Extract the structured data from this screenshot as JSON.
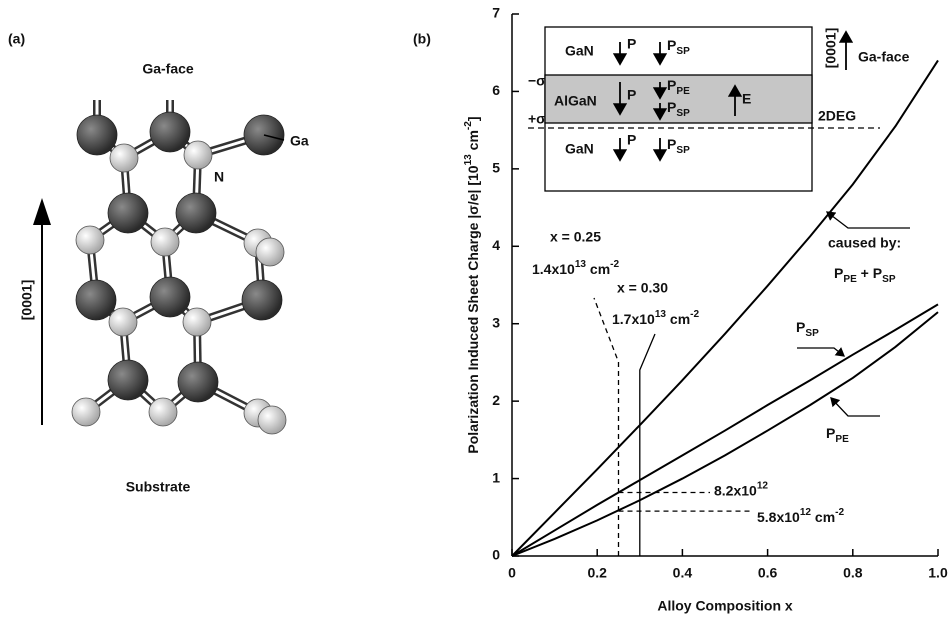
{
  "panel_a": {
    "label": "(a)",
    "top": "Ga-face",
    "ga": "Ga",
    "n": "N",
    "direction": "[0001]",
    "bottom": "Substrate"
  },
  "chart_data": {
    "type": "line",
    "panel_label": "(b)",
    "x_label": "Alloy Composition  x",
    "y_label": {
      "text": "Polarization Induced Sheet Charge |σ/e| [10",
      "exp": "13",
      "unit": " cm",
      "unit_exp": "-2",
      "close": "]"
    },
    "x": [
      0,
      0.1,
      0.2,
      0.3,
      0.4,
      0.5,
      0.6,
      0.7,
      0.8,
      0.9,
      1
    ],
    "series": [
      {
        "name": "caused by:",
        "formula": {
          "a": "P",
          "a_sub": "PE",
          "plus": " + P",
          "b_sub": "SP"
        },
        "color": "#000000",
        "values": [
          0,
          0.56,
          1.12,
          1.69,
          2.27,
          2.87,
          3.49,
          4.13,
          4.8,
          5.55,
          6.4
        ]
      },
      {
        "name": "P",
        "name_sub": "SP",
        "color": "#000000",
        "values": [
          0,
          0.33,
          0.66,
          0.98,
          1.3,
          1.62,
          1.95,
          2.27,
          2.6,
          2.92,
          3.25
        ]
      },
      {
        "name": "P",
        "name_sub": "PE",
        "color": "#000000",
        "values": [
          0,
          0.22,
          0.46,
          0.72,
          1.0,
          1.3,
          1.62,
          1.95,
          2.3,
          2.7,
          3.15
        ]
      }
    ],
    "xlim": [
      0,
      1
    ],
    "ylim": [
      0,
      7
    ],
    "xticks": [
      0,
      0.2,
      0.4,
      0.6,
      0.8,
      {
        "value": 1,
        "label": "1.0"
      }
    ],
    "yticks": [
      0,
      1,
      2,
      3,
      4,
      5,
      6,
      7
    ],
    "guides": [
      {
        "x": 0.25,
        "style": "dashed",
        "label": "x = 0.25",
        "value": "1.4x10",
        "exp": "13",
        "unit": " cm",
        "unit_exp": "-2"
      },
      {
        "x": 0.3,
        "style": "solid",
        "label": "x = 0.30",
        "value": "1.7x10",
        "exp": "13",
        "unit": " cm",
        "unit_exp": "-2"
      }
    ],
    "levels": [
      {
        "y": 0.82,
        "value": "8.2x10",
        "exp": "12"
      },
      {
        "y": 0.58,
        "value": "5.8x10",
        "exp": "12",
        "unit": " cm",
        "unit_exp": "-2"
      }
    ],
    "inset": {
      "top": {
        "layer": "GaN",
        "p": "P",
        "psp": "P",
        "psp_sub": "SP"
      },
      "middle": {
        "layer": "AlGaN",
        "p": "P",
        "ppe": "P",
        "ppe_sub": "PE",
        "psp": "P",
        "psp_sub": "SP",
        "e": "E"
      },
      "bottom": {
        "layer": "GaN",
        "p": "P",
        "psp": "P",
        "psp_sub": "SP"
      },
      "minus_sigma": "−σ",
      "plus_sigma": "+σ",
      "twodeg": "2DEG",
      "direction": "[0001]",
      "face": "Ga-face"
    }
  }
}
